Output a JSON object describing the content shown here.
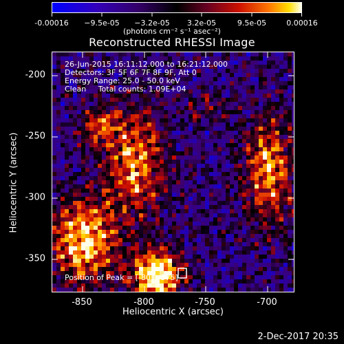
{
  "colorbar": {
    "ticks": [
      "-0.00016",
      "−9.5e-05",
      "−3.2e-05",
      "3.2e-05",
      "9.5e-05",
      "0.00016"
    ],
    "units": "(photons cm⁻² s⁻¹ asec⁻²)",
    "colors": [
      "#0000ff",
      "#3300aa",
      "#330055",
      "#000000",
      "#660033",
      "#cc0000",
      "#ff6600",
      "#ffcc00",
      "#ffffff"
    ]
  },
  "info": {
    "line1": "26-Jun-2015 16:11:12.000 to 16:21:12.000",
    "line2": "Detectors: 3F 5F 6F 7F 8F 9F, Att 0",
    "line3": "Energy Range: 25.0 - 50.0 keV",
    "line4": "Clean     Total counts: 1.09E+04",
    "peak": "Position of Peak = [-801,-375]"
  },
  "footer": {
    "timestamp": "2-Dec-2017 20:35"
  },
  "chart_data": {
    "type": "heatmap",
    "title": "Reconstructed RHESSI Image",
    "xlabel": "Heliocentric X (arcsec)",
    "ylabel": "Heliocentric Y (arcsec)",
    "xlim": [
      -875,
      -678
    ],
    "ylim": [
      -375,
      -180
    ],
    "xticks": [
      -850,
      -800,
      -750,
      -700
    ],
    "yticks": [
      -200,
      -250,
      -300,
      -350
    ],
    "zlim": [
      -0.00016,
      0.00016
    ],
    "peak": [
      -801,
      -375
    ],
    "legend": "colorbar top"
  }
}
